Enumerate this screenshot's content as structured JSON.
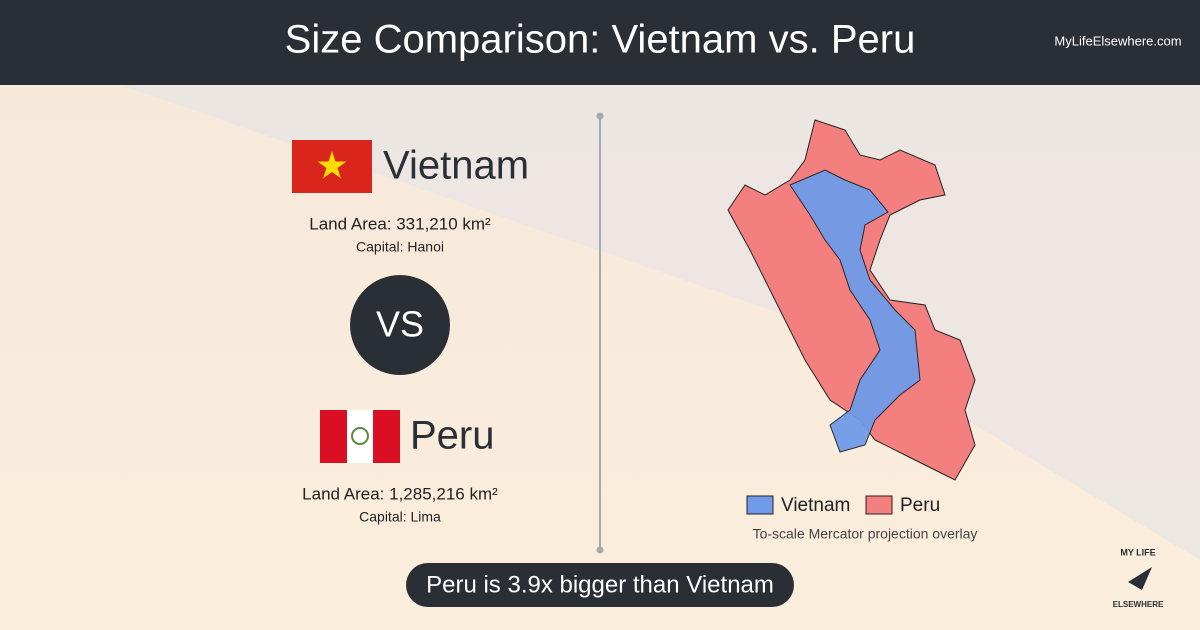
{
  "header": {
    "title": "Size Comparison: Vietnam vs. Peru",
    "site": "MyLifeElsewhere.com"
  },
  "country_a": {
    "name": "Vietnam",
    "land_area": "Land Area: 331,210 km²",
    "capital": "Capital: Hanoi"
  },
  "versus": "VS",
  "country_b": {
    "name": "Peru",
    "land_area": "Land Area: 1,285,216 km²",
    "capital": "Capital: Lima"
  },
  "legend": [
    "Vietnam",
    "Peru"
  ],
  "map_note": "To-scale Mercator projection overlay",
  "summary": "Peru is 3.9x bigger than Vietnam",
  "logo": {
    "top": "MY LIFE",
    "bottom": "ELSEWHERE"
  }
}
